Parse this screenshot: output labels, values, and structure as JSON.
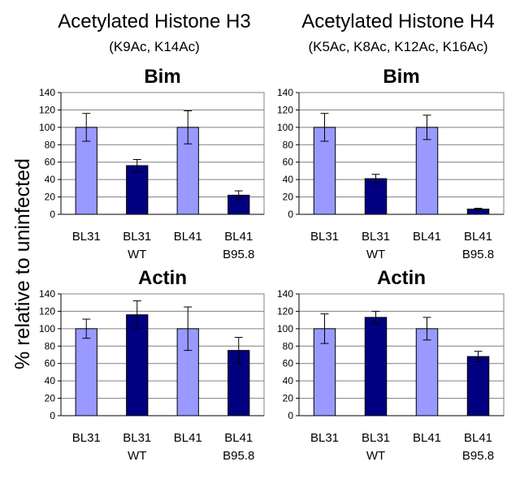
{
  "figure": {
    "ylabel": "% relative to uninfected",
    "columns": [
      {
        "title": "Acetylated Histone H3",
        "subtitle": "(K9Ac, K14Ac)"
      },
      {
        "title": "Acetylated Histone H4",
        "subtitle": "(K5Ac, K8Ac, K12Ac, K16Ac)"
      }
    ]
  },
  "colors": {
    "light": "#9999ff",
    "dark": "#000080",
    "frame": "#808080"
  },
  "chart_data": [
    {
      "id": "h3-bim",
      "type": "bar",
      "title": "Bim",
      "categories": [
        [
          "BL31",
          ""
        ],
        [
          "BL31",
          "WT"
        ],
        [
          "BL41",
          ""
        ],
        [
          "BL41",
          "B95.8"
        ]
      ],
      "values": [
        100,
        56,
        100,
        22
      ],
      "errors": [
        16,
        7,
        19,
        5
      ],
      "shades": [
        "light",
        "dark",
        "light",
        "dark"
      ],
      "ylim": [
        0,
        140
      ],
      "yticks": [
        "0",
        "20",
        "40",
        "60",
        "80",
        "100",
        "120",
        "140"
      ],
      "grid": true
    },
    {
      "id": "h4-bim",
      "type": "bar",
      "title": "Bim",
      "categories": [
        [
          "BL31",
          ""
        ],
        [
          "BL31",
          "WT"
        ],
        [
          "BL41",
          ""
        ],
        [
          "BL41",
          "B95.8"
        ]
      ],
      "values": [
        100,
        41,
        100,
        6
      ],
      "errors": [
        16,
        5,
        14,
        1
      ],
      "shades": [
        "light",
        "dark",
        "light",
        "dark"
      ],
      "ylim": [
        0,
        140
      ],
      "yticks": [
        "0",
        "20",
        "40",
        "60",
        "80",
        "100",
        "120",
        "140"
      ],
      "grid": true
    },
    {
      "id": "h3-actin",
      "type": "bar",
      "title": "Actin",
      "categories": [
        [
          "BL31",
          ""
        ],
        [
          "BL31",
          "WT"
        ],
        [
          "BL41",
          ""
        ],
        [
          "BL41",
          "B95.8"
        ]
      ],
      "values": [
        100,
        116,
        100,
        75
      ],
      "errors": [
        11,
        16,
        25,
        15
      ],
      "shades": [
        "light",
        "dark",
        "light",
        "dark"
      ],
      "ylim": [
        0,
        140
      ],
      "yticks": [
        "0",
        "20",
        "40",
        "60",
        "80",
        "100",
        "120",
        "140"
      ],
      "grid": true
    },
    {
      "id": "h4-actin",
      "type": "bar",
      "title": "Actin",
      "categories": [
        [
          "BL31",
          ""
        ],
        [
          "BL31",
          "WT"
        ],
        [
          "BL41",
          ""
        ],
        [
          "BL41",
          "B95.8"
        ]
      ],
      "values": [
        100,
        113,
        100,
        68
      ],
      "errors": [
        17,
        7,
        13,
        6
      ],
      "shades": [
        "light",
        "dark",
        "light",
        "dark"
      ],
      "ylim": [
        0,
        140
      ],
      "yticks": [
        "0",
        "20",
        "40",
        "60",
        "80",
        "100",
        "120",
        "140"
      ],
      "grid": true
    }
  ]
}
